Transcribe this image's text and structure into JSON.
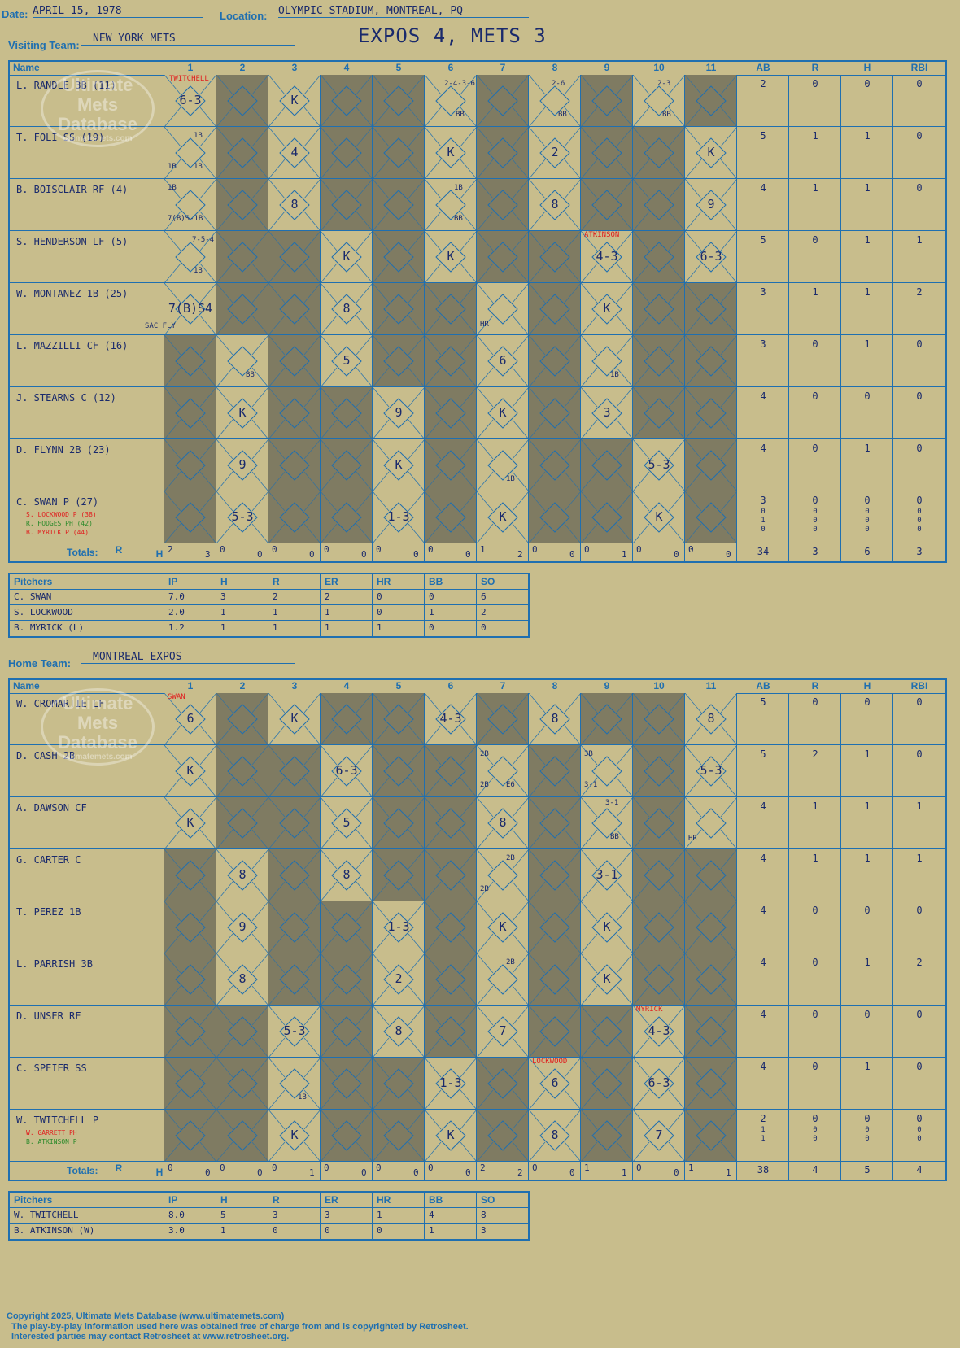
{
  "header": {
    "date_label": "Date:",
    "date": "APRIL 15, 1978",
    "location_label": "Location:",
    "location": "OLYMPIC STADIUM, MONTREAL, PQ",
    "visiting_label": "Visiting Team:",
    "visiting_team": "NEW YORK METS",
    "home_label": "Home Team:",
    "home_team": "MONTREAL EXPOS",
    "score_title": "EXPOS 4, METS 3"
  },
  "watermark": {
    "line1": "Ultimate",
    "line2": "Mets",
    "line3": "Database",
    "site": "ultimatemets.com"
  },
  "columns": {
    "name": "Name",
    "innings": [
      "1",
      "2",
      "3",
      "4",
      "5",
      "6",
      "7",
      "8",
      "9",
      "10",
      "11"
    ],
    "stats": [
      "AB",
      "R",
      "H",
      "RBI"
    ]
  },
  "totals_label": "Totals:",
  "totals_r": "R",
  "totals_h": "H",
  "visitors": {
    "rows": [
      {
        "name": "L. RANDLE 3B (11)",
        "stats": [
          "2",
          "0",
          "0",
          "0"
        ],
        "dark": [
          2,
          4,
          5,
          7,
          9,
          11
        ],
        "plays": {
          "1": "6-3",
          "3": "K"
        },
        "notes": [
          {
            "inn": 1,
            "t": "TWITCHELL",
            "c": "red",
            "x": 6,
            "y": 0
          },
          {
            "inn": 6,
            "t": "2-4-3-6",
            "x": 24,
            "y": 6
          },
          {
            "inn": 6,
            "t": "BB",
            "x": 38,
            "y": 44
          },
          {
            "inn": 8,
            "t": "2-6",
            "x": 28,
            "y": 6
          },
          {
            "inn": 8,
            "t": "BB",
            "x": 36,
            "y": 44
          },
          {
            "inn": 10,
            "t": "2-3",
            "x": 30,
            "y": 6
          },
          {
            "inn": 10,
            "t": "BB",
            "x": 36,
            "y": 44
          }
        ]
      },
      {
        "name": "T. FOLI SS (19)",
        "stats": [
          "5",
          "1",
          "1",
          "0"
        ],
        "dark": [
          2,
          4,
          5,
          7,
          9,
          10
        ],
        "plays": {
          "3": "4",
          "6": "K",
          "8": "2",
          "11": "K"
        },
        "notes": [
          {
            "inn": 1,
            "t": "1B",
            "x": 36,
            "y": 6
          },
          {
            "inn": 1,
            "t": "1B",
            "x": 4,
            "y": 44
          },
          {
            "inn": 1,
            "t": "1B",
            "x": 36,
            "y": 44
          }
        ]
      },
      {
        "name": "B. BOISCLAIR RF (4)",
        "stats": [
          "4",
          "1",
          "1",
          "0"
        ],
        "dark": [
          2,
          4,
          5,
          7,
          9,
          10
        ],
        "plays": {
          "3": "8",
          "8": "8",
          "11": "9"
        },
        "notes": [
          {
            "inn": 1,
            "t": "1B",
            "x": 4,
            "y": 6
          },
          {
            "inn": 1,
            "t": "7(B)S-1B",
            "x": 4,
            "y": 44
          },
          {
            "inn": 6,
            "t": "1B",
            "x": 36,
            "y": 6
          },
          {
            "inn": 6,
            "t": "BB",
            "x": 36,
            "y": 44
          }
        ]
      },
      {
        "name": "S. HENDERSON LF (5)",
        "stats": [
          "5",
          "0",
          "1",
          "1"
        ],
        "dark": [
          2,
          3,
          5,
          7,
          8,
          10
        ],
        "plays": {
          "4": "K",
          "6": "K",
          "9": "4-3",
          "11": "6-3"
        },
        "notes": [
          {
            "inn": 1,
            "t": "7-5-4",
            "x": 34,
            "y": 6
          },
          {
            "inn": 1,
            "t": "1B",
            "x": 36,
            "y": 44
          },
          {
            "inn": 9,
            "t": "ATKINSON",
            "c": "red",
            "x": 4,
            "y": 0
          }
        ]
      },
      {
        "name": "W. MONTANEZ 1B (25)",
        "stats": [
          "3",
          "1",
          "1",
          "2"
        ],
        "dark": [
          2,
          3,
          5,
          6,
          8,
          10,
          11
        ],
        "plays": {
          "1": "7(B)S4",
          "4": "8",
          "9": "K"
        },
        "notes": [
          {
            "inn": 1,
            "t": "SAC FLY",
            "x": -24,
            "y": 48
          },
          {
            "inn": 7,
            "t": "HR",
            "x": 4,
            "y": 46
          }
        ]
      },
      {
        "name": "L. MAZZILLI CF (16)",
        "stats": [
          "3",
          "0",
          "1",
          "0"
        ],
        "dark": [
          1,
          3,
          5,
          6,
          8,
          10,
          11
        ],
        "plays": {
          "4": "5",
          "7": "6"
        },
        "notes": [
          {
            "inn": 2,
            "t": "BB",
            "x": 36,
            "y": 44
          },
          {
            "inn": 9,
            "t": "1B",
            "x": 36,
            "y": 44
          }
        ]
      },
      {
        "name": "J. STEARNS C (12)",
        "stats": [
          "4",
          "0",
          "0",
          "0"
        ],
        "dark": [
          1,
          3,
          4,
          6,
          8,
          10,
          11
        ],
        "plays": {
          "2": "K",
          "5": "9",
          "7": "K",
          "9": "3"
        },
        "notes": []
      },
      {
        "name": "D. FLYNN 2B (23)",
        "stats": [
          "4",
          "0",
          "1",
          "0"
        ],
        "dark": [
          1,
          3,
          4,
          6,
          8,
          9,
          11
        ],
        "plays": {
          "2": "9",
          "5": "K",
          "10": "5-3"
        },
        "notes": [
          {
            "inn": 7,
            "t": "1B",
            "x": 36,
            "y": 44
          }
        ]
      },
      {
        "name": "C. SWAN P (27)",
        "stats": [
          "3",
          "0",
          "0",
          "0"
        ],
        "dark": [
          1,
          3,
          4,
          6,
          8,
          9,
          11
        ],
        "plays": {
          "2": "5-3",
          "5": "1-3",
          "7": "K",
          "10": "K"
        },
        "notes": [],
        "subs": [
          {
            "t": "S. LOCKWOOD P (38)",
            "c": "red",
            "s": [
              "0",
              "0",
              "0",
              "0"
            ]
          },
          {
            "t": "R. HODGES PH (42)",
            "c": "green",
            "s": [
              "1",
              "0",
              "0",
              "0"
            ]
          },
          {
            "t": "B. MYRICK P (44)",
            "c": "red",
            "s": [
              "0",
              "0",
              "0",
              "0"
            ]
          }
        ]
      }
    ],
    "totals": [
      [
        "2",
        "3"
      ],
      [
        "0",
        "0"
      ],
      [
        "0",
        "0"
      ],
      [
        "0",
        "0"
      ],
      [
        "0",
        "0"
      ],
      [
        "0",
        "0"
      ],
      [
        "1",
        "2"
      ],
      [
        "0",
        "0"
      ],
      [
        "0",
        "1"
      ],
      [
        "0",
        "0"
      ],
      [
        "0",
        "0"
      ]
    ],
    "stat_totals": [
      "34",
      "3",
      "6",
      "3"
    ]
  },
  "visitor_pitchers": {
    "label": "Pitchers",
    "cols": [
      "IP",
      "H",
      "R",
      "ER",
      "HR",
      "BB",
      "SO"
    ],
    "rows": [
      [
        "C. SWAN",
        "7.0",
        "3",
        "2",
        "2",
        "0",
        "0",
        "6"
      ],
      [
        "S. LOCKWOOD",
        "2.0",
        "1",
        "1",
        "1",
        "0",
        "1",
        "2"
      ],
      [
        "B. MYRICK (L)",
        "1.2",
        "1",
        "1",
        "1",
        "1",
        "0",
        "0"
      ]
    ]
  },
  "home": {
    "rows": [
      {
        "name": "W. CROMARTIE LF",
        "stats": [
          "5",
          "0",
          "0",
          "0"
        ],
        "dark": [
          2,
          4,
          5,
          7,
          9,
          10
        ],
        "plays": {
          "1": "6",
          "3": "K",
          "6": "4-3",
          "8": "8",
          "11": "8"
        },
        "notes": [
          {
            "inn": 1,
            "t": "SWAN",
            "c": "red",
            "x": 4,
            "y": 0
          }
        ]
      },
      {
        "name": "D. CASH 2B",
        "stats": [
          "5",
          "2",
          "1",
          "0"
        ],
        "dark": [
          2,
          3,
          5,
          6,
          8,
          10
        ],
        "plays": {
          "1": "K",
          "4": "6-3",
          "11": "5-3"
        },
        "notes": [
          {
            "inn": 7,
            "t": "2B",
            "x": 4,
            "y": 6
          },
          {
            "inn": 7,
            "t": "2B",
            "x": 4,
            "y": 44
          },
          {
            "inn": 7,
            "t": "E6",
            "x": 36,
            "y": 44
          },
          {
            "inn": 9,
            "t": "3B",
            "x": 4,
            "y": 6
          },
          {
            "inn": 9,
            "t": "3-1",
            "x": 4,
            "y": 44
          }
        ]
      },
      {
        "name": "A. DAWSON CF",
        "stats": [
          "4",
          "1",
          "1",
          "1"
        ],
        "dark": [
          2,
          3,
          5,
          6,
          8,
          10
        ],
        "plays": {
          "1": "K",
          "4": "5",
          "7": "8"
        },
        "notes": [
          {
            "inn": 9,
            "t": "3-1",
            "x": 30,
            "y": 2
          },
          {
            "inn": 9,
            "t": "BB",
            "x": 36,
            "y": 44
          },
          {
            "inn": 11,
            "t": "HR",
            "x": 4,
            "y": 46
          }
        ]
      },
      {
        "name": "G. CARTER C",
        "stats": [
          "4",
          "1",
          "1",
          "1"
        ],
        "dark": [
          1,
          3,
          5,
          6,
          8,
          10,
          11
        ],
        "plays": {
          "2": "8",
          "4": "8",
          "9": "3-1"
        },
        "notes": [
          {
            "inn": 7,
            "t": "2B",
            "x": 36,
            "y": 6
          },
          {
            "inn": 7,
            "t": "2B",
            "x": 4,
            "y": 44
          }
        ]
      },
      {
        "name": "T. PEREZ 1B",
        "stats": [
          "4",
          "0",
          "0",
          "0"
        ],
        "dark": [
          1,
          3,
          4,
          6,
          8,
          10,
          11
        ],
        "plays": {
          "2": "9",
          "5": "1-3",
          "7": "K",
          "9": "K"
        },
        "notes": []
      },
      {
        "name": "L. PARRISH 3B",
        "stats": [
          "4",
          "0",
          "1",
          "2"
        ],
        "dark": [
          1,
          3,
          4,
          6,
          8,
          10,
          11
        ],
        "plays": {
          "2": "8",
          "5": "2",
          "9": "K"
        },
        "notes": [
          {
            "inn": 7,
            "t": "2B",
            "x": 36,
            "y": 6
          }
        ]
      },
      {
        "name": "D. UNSER RF",
        "stats": [
          "4",
          "0",
          "0",
          "0"
        ],
        "dark": [
          1,
          2,
          4,
          6,
          8,
          9,
          11
        ],
        "plays": {
          "3": "5-3",
          "5": "8",
          "7": "7",
          "10": "4-3"
        },
        "notes": [
          {
            "inn": 10,
            "t": "MYRICK",
            "c": "red",
            "x": 4,
            "y": 0
          }
        ]
      },
      {
        "name": "C. SPEIER SS",
        "stats": [
          "4",
          "0",
          "1",
          "0"
        ],
        "dark": [
          1,
          2,
          4,
          5,
          7,
          9,
          11
        ],
        "plays": {
          "6": "1-3",
          "8": "6",
          "10": "6-3"
        },
        "notes": [
          {
            "inn": 3,
            "t": "1B",
            "x": 36,
            "y": 44
          },
          {
            "inn": 8,
            "t": "LOCKWOOD",
            "c": "red",
            "x": 4,
            "y": 0
          }
        ]
      },
      {
        "name": "W. TWITCHELL P",
        "stats": [
          "2",
          "0",
          "0",
          "0"
        ],
        "dark": [
          1,
          2,
          4,
          5,
          7,
          9,
          11
        ],
        "plays": {
          "3": "K",
          "6": "K",
          "8": "8",
          "10": "7"
        },
        "notes": [],
        "subs": [
          {
            "t": "W. GARRETT PH",
            "c": "red",
            "s": [
              "1",
              "0",
              "0",
              "0"
            ]
          },
          {
            "t": "B. ATKINSON P",
            "c": "green",
            "s": [
              "1",
              "0",
              "0",
              "0"
            ]
          }
        ]
      }
    ],
    "totals": [
      [
        "0",
        "0"
      ],
      [
        "0",
        "0"
      ],
      [
        "0",
        "1"
      ],
      [
        "0",
        "0"
      ],
      [
        "0",
        "0"
      ],
      [
        "0",
        "0"
      ],
      [
        "2",
        "2"
      ],
      [
        "0",
        "0"
      ],
      [
        "1",
        "1"
      ],
      [
        "0",
        "0"
      ],
      [
        "1",
        "1"
      ]
    ],
    "stat_totals": [
      "38",
      "4",
      "5",
      "4"
    ]
  },
  "home_pitchers": {
    "label": "Pitchers",
    "cols": [
      "IP",
      "H",
      "R",
      "ER",
      "HR",
      "BB",
      "SO"
    ],
    "rows": [
      [
        "W. TWITCHELL",
        "8.0",
        "5",
        "3",
        "3",
        "1",
        "4",
        "8"
      ],
      [
        "B. ATKINSON (W)",
        "3.0",
        "1",
        "0",
        "0",
        "0",
        "1",
        "3"
      ]
    ]
  },
  "footer": {
    "line1": "Copyright 2025, Ultimate Mets Database (www.ultimatemets.com)",
    "line2": "The play-by-play information used here was obtained free of charge from and is copyrighted by Retrosheet.",
    "line3": "Interested parties may contact Retrosheet at www.retrosheet.org."
  },
  "colors": {
    "dark_cell": "#7f7b62",
    "light_cell": "#c8bd8c",
    "line": "#1f6fb0",
    "ink": "#1a2a6c",
    "red": "#e02020",
    "green": "#2a8a2a"
  }
}
